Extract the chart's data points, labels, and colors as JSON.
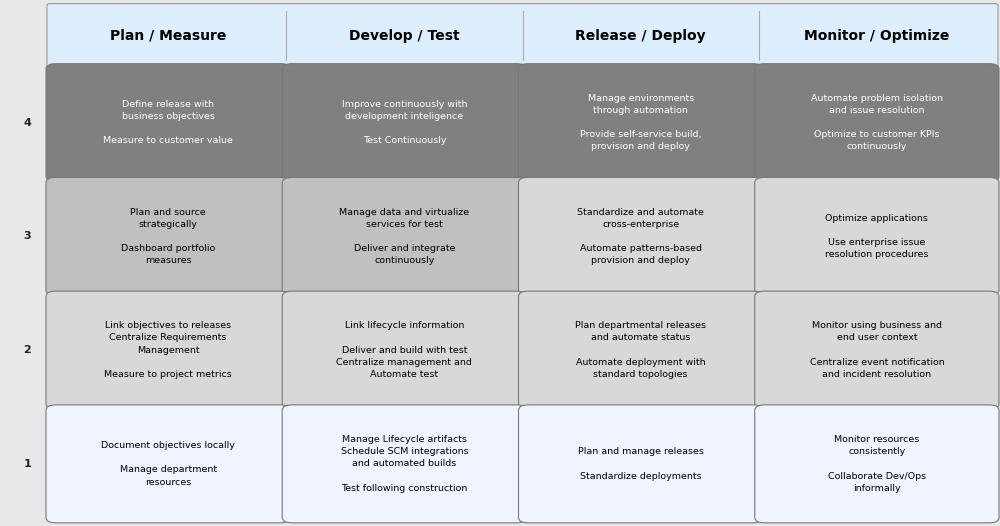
{
  "fig_width": 10.0,
  "fig_height": 5.26,
  "bg_color": "#e8e8e8",
  "header_bg": "#ddeeff",
  "header_text_color": "#000000",
  "columns": [
    "Plan / Measure",
    "Develop / Test",
    "Release / Deploy",
    "Monitor / Optimize"
  ],
  "rows": [
    {
      "label": "4",
      "cell_bg": [
        "#808080",
        "#808080",
        "#808080",
        "#808080"
      ],
      "cell_fg": [
        "#ffffff",
        "#ffffff",
        "#ffffff",
        "#ffffff"
      ],
      "cells": [
        "Define release with\nbusiness objectives\n\nMeasure to customer value",
        "Improve continuously with\ndevelopment inteligence\n\nTest Continuously",
        "Manage environments\nthrough automation\n\nProvide self-service build,\nprovision and deploy",
        "Automate problem isolation\nand issue resolution\n\nOptimize to customer KPIs\ncontinuously"
      ]
    },
    {
      "label": "3",
      "cell_bg": [
        "#c0c0c0",
        "#c0c0c0",
        "#d8d8d8",
        "#d8d8d8"
      ],
      "cell_fg": [
        "#000000",
        "#000000",
        "#000000",
        "#000000"
      ],
      "cells": [
        "Plan and source\nstrategically\n\nDashboard portfolio\nmeasures",
        "Manage data and virtualize\nservices for test\n\nDeliver and integrate\ncontinuously",
        "Standardize and automate\ncross-enterprise\n\nAutomate patterns-based\nprovision and deploy",
        "Optimize applications\n\nUse enterprise issue\nresolution procedures"
      ]
    },
    {
      "label": "2",
      "cell_bg": [
        "#d8d8d8",
        "#d8d8d8",
        "#d8d8d8",
        "#d8d8d8"
      ],
      "cell_fg": [
        "#000000",
        "#000000",
        "#000000",
        "#000000"
      ],
      "cells": [
        "Link objectives to releases\nCentralize Requirements\nManagement\n\nMeasure to project metrics",
        "Link lifecycle information\n\nDeliver and build with test\nCentralize management and\nAutomate test",
        "Plan departmental releases\nand automate status\n\nAutomate deployment with\nstandard topologies",
        "Monitor using business and\nend user context\n\nCentralize event notification\nand incident resolution"
      ]
    },
    {
      "label": "1",
      "cell_bg": [
        "#f0f4ff",
        "#f0f4ff",
        "#f0f4ff",
        "#f0f4ff"
      ],
      "cell_fg": [
        "#000000",
        "#000000",
        "#000000",
        "#000000"
      ],
      "cells": [
        "Document objectives locally\n\nManage department\nresources",
        "Manage Lifecycle artifacts\nSchedule SCM integrations\nand automated builds\n\nTest following construction",
        "Plan and manage releases\n\nStandardize deployments",
        "Monitor resources\nconsistently\n\nCollaborate Dev/Ops\ninformally"
      ]
    }
  ]
}
